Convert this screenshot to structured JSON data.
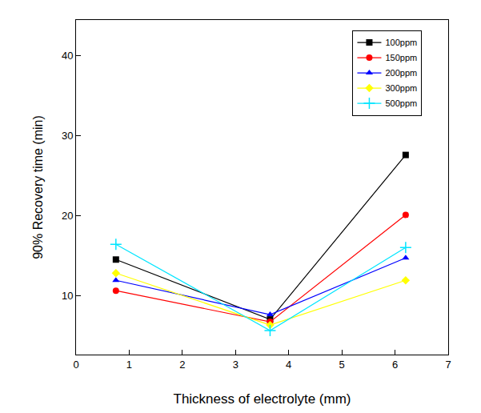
{
  "chart_data": {
    "type": "line",
    "x_label": "Thickness of electrolyte (mm)",
    "y_label": "90% Recovery time (min)",
    "x": [
      0.75,
      3.65,
      6.2
    ],
    "series": [
      {
        "name": "100ppm",
        "color": "#000000",
        "marker": "square",
        "values": [
          14.5,
          7.0,
          27.6
        ]
      },
      {
        "name": "150ppm",
        "color": "#ff0000",
        "marker": "circle",
        "values": [
          10.6,
          6.7,
          20.1
        ]
      },
      {
        "name": "200ppm",
        "color": "#0000ff",
        "marker": "triangle-up",
        "values": [
          11.9,
          7.6,
          14.7
        ]
      },
      {
        "name": "300ppm",
        "color": "#ffff00",
        "marker": "diamond",
        "values": [
          12.8,
          6.3,
          11.9
        ]
      },
      {
        "name": "500ppm",
        "color": "#00e5ff",
        "marker": "cross-thin",
        "values": [
          16.4,
          5.6,
          16.0
        ]
      }
    ],
    "xlim": [
      0,
      7
    ],
    "xticks": [
      0,
      1,
      2,
      3,
      4,
      5,
      6,
      7
    ],
    "ylim": [
      2.6,
      44.5
    ],
    "yticks": [
      10,
      20,
      30,
      40
    ],
    "legend": "upper right",
    "grid": false
  }
}
